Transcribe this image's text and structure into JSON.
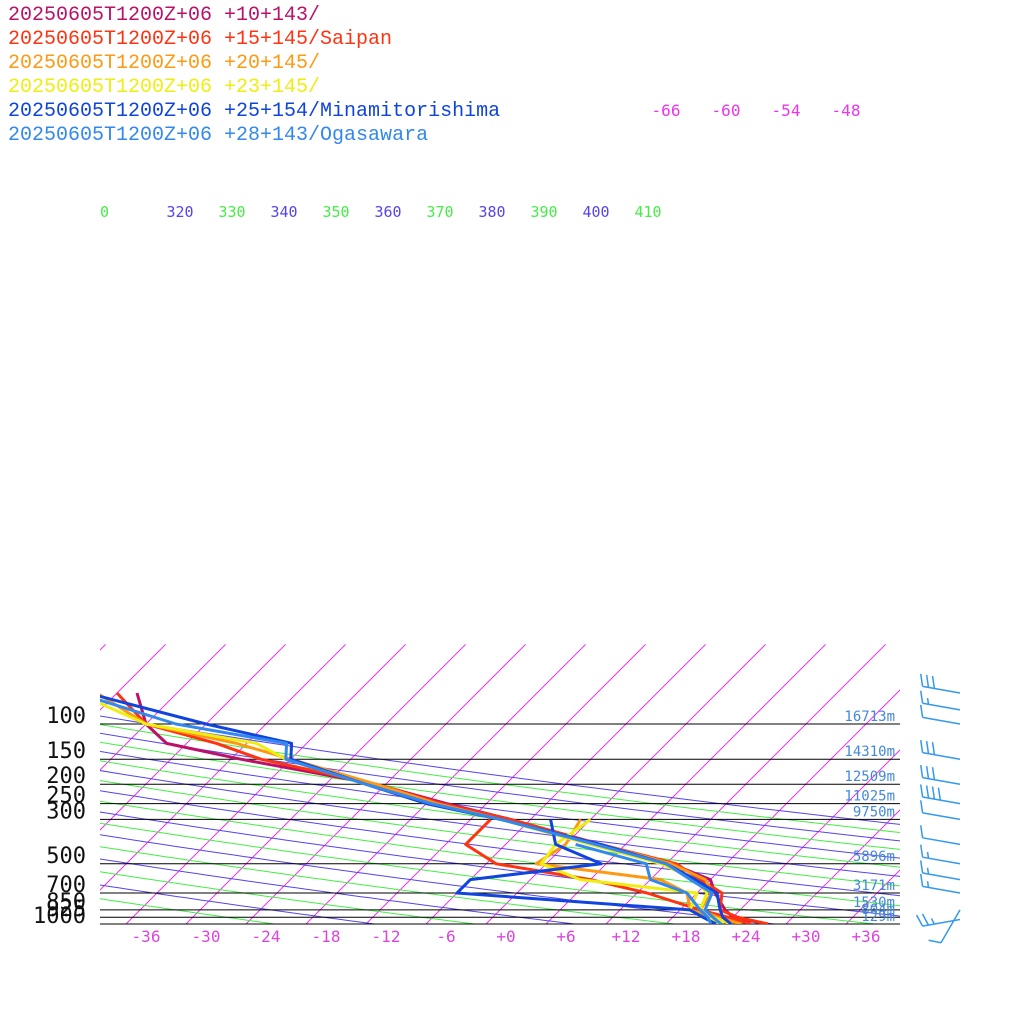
{
  "chart_data": {
    "type": "line",
    "title": "",
    "pressure_levels": [
      100,
      150,
      200,
      250,
      300,
      500,
      700,
      850,
      925,
      1000
    ],
    "pressure_labels": [
      "100",
      "150",
      "200",
      "250",
      "300",
      "500",
      "700",
      "850",
      "925",
      "1000"
    ],
    "height_labels": [
      "16713m",
      "14310m",
      "12509m",
      "11025m",
      "9750m",
      "5896m",
      "3171m",
      "1530m",
      "804m",
      "129m"
    ],
    "x_ticks": [
      -36,
      -30,
      -24,
      -18,
      -12,
      -6,
      0,
      6,
      12,
      18,
      24,
      30,
      36
    ],
    "x_tick_labels": [
      "-36",
      "-30",
      "-24",
      "-18",
      "-12",
      "-6",
      "+0",
      "+6",
      "+12",
      "+18",
      "+24",
      "+30",
      "+36"
    ],
    "isotherm_labels": [
      "-66",
      "-60",
      "-54",
      "-48"
    ],
    "theta_labels": [
      "0",
      "320",
      "330",
      "340",
      "350",
      "360",
      "370",
      "380",
      "390",
      "400",
      "410"
    ],
    "colors": {
      "isotherm": "#ee33ee",
      "theta_blue": "#5544ee",
      "theta_green": "#44ee44",
      "isobar": "#000000",
      "height_label": "#4488dd",
      "x_tick": "#dd44dd",
      "barb": "#3399ee"
    },
    "series": [
      {
        "name": "20250605T1200Z+06 +10+143/",
        "color": "#bb1166",
        "points": [
          {
            "p": 1000,
            "t": 26.1,
            "dew": null
          },
          {
            "p": 925,
            "t": 22.0,
            "dew": null
          },
          {
            "p": 850,
            "t": 20.5,
            "dew": null
          },
          {
            "p": 700,
            "t": 17.8,
            "dew": null
          },
          {
            "p": 600,
            "t": 16.0,
            "dew": null
          },
          {
            "p": 500,
            "t": 10.5,
            "dew": null
          },
          {
            "p": 400,
            "t": 1.5,
            "dew": null
          },
          {
            "p": 300,
            "t": -10.0,
            "dew": null
          },
          {
            "p": 250,
            "t": -18.0,
            "dew": null
          },
          {
            "p": 200,
            "t": -27.0,
            "dew": null
          },
          {
            "p": 150,
            "t": -43.0,
            "dew": null
          },
          {
            "p": 125,
            "t": -52.0,
            "dew": null
          },
          {
            "p": 100,
            "t": -56.0,
            "dew": null
          },
          {
            "p": 70,
            "t": -60.0,
            "dew": null
          }
        ]
      },
      {
        "name": "20250605T1200Z+06 +15+145/Saipan",
        "color": "#ff3311",
        "points": [
          {
            "p": 1000,
            "t": 26.2,
            "dew": 24.5
          },
          {
            "p": 925,
            "t": 22.5,
            "dew": 21.5
          },
          {
            "p": 850,
            "t": 20.0,
            "dew": 18.0
          },
          {
            "p": 700,
            "t": 18.5,
            "dew": 11.0
          },
          {
            "p": 600,
            "t": 15.0,
            "dew": 4.0
          },
          {
            "p": 500,
            "t": 11.0,
            "dew": -7.0
          },
          {
            "p": 400,
            "t": 1.5,
            "dew": -12.0
          },
          {
            "p": 300,
            "t": -10.0,
            "dew": -12.0
          },
          {
            "p": 250,
            "t": -18.5,
            "dew": null
          },
          {
            "p": 200,
            "t": -27.0,
            "dew": null
          },
          {
            "p": 150,
            "t": -41.0,
            "dew": null
          },
          {
            "p": 125,
            "t": -47.0,
            "dew": null
          },
          {
            "p": 100,
            "t": -56.0,
            "dew": null
          },
          {
            "p": 70,
            "t": -62.0,
            "dew": null
          }
        ]
      },
      {
        "name": "20250605T1200Z+06 +20+145/",
        "color": "#ff9911",
        "points": [
          {
            "p": 1000,
            "t": 23.5,
            "dew": 22.5
          },
          {
            "p": 925,
            "t": 20.5,
            "dew": 20.0
          },
          {
            "p": 850,
            "t": 18.0,
            "dew": 17.0
          },
          {
            "p": 700,
            "t": 17.5,
            "dew": 15.0
          },
          {
            "p": 600,
            "t": 15.5,
            "dew": 11.0
          },
          {
            "p": 500,
            "t": 10.5,
            "dew": -3.0
          },
          {
            "p": 400,
            "t": 1.5,
            "dew": -2.0
          },
          {
            "p": 300,
            "t": -11.0,
            "dew": -3.0
          },
          {
            "p": 250,
            "t": -19.0,
            "dew": null
          },
          {
            "p": 200,
            "t": -27.0,
            "dew": null
          },
          {
            "p": 150,
            "t": -38.0,
            "dew": null
          },
          {
            "p": 125,
            "t": -45.0,
            "dew": null
          },
          {
            "p": 100,
            "t": -56.0,
            "dew": null
          },
          {
            "p": 70,
            "t": -64.0,
            "dew": null
          }
        ]
      },
      {
        "name": "20250605T1200Z+06 +23+145/",
        "color": "#eeee11",
        "points": [
          {
            "p": 1000,
            "t": 22.5,
            "dew": 21.5
          },
          {
            "p": 925,
            "t": 20.0,
            "dew": 19.0
          },
          {
            "p": 850,
            "t": 18.0,
            "dew": 17.0
          },
          {
            "p": 700,
            "t": 17.0,
            "dew": 16.0
          },
          {
            "p": 600,
            "t": 14.5,
            "dew": 3.0
          },
          {
            "p": 500,
            "t": 9.5,
            "dew": -2.5
          },
          {
            "p": 400,
            "t": 0.5,
            "dew": -3.0
          },
          {
            "p": 300,
            "t": -11.0,
            "dew": -2.0
          },
          {
            "p": 250,
            "t": -20.0,
            "dew": null
          },
          {
            "p": 200,
            "t": -28.0,
            "dew": null
          },
          {
            "p": 150,
            "t": -38.5,
            "dew": null
          },
          {
            "p": 125,
            "t": -43.0,
            "dew": null
          },
          {
            "p": 100,
            "t": -56.0,
            "dew": null
          },
          {
            "p": 70,
            "t": -66.0,
            "dew": null
          }
        ]
      },
      {
        "name": "20250605T1200Z+06 +25+154/Minamitorishima",
        "color": "#1144dd",
        "points": [
          {
            "p": 1000,
            "t": 22.5,
            "dew": 21.0
          },
          {
            "p": 925,
            "t": 21.0,
            "dew": 19.0
          },
          {
            "p": 850,
            "t": 20.0,
            "dew": 17.0
          },
          {
            "p": 700,
            "t": 18.0,
            "dew": -8.0
          },
          {
            "p": 600,
            "t": 14.5,
            "dew": -8.0
          },
          {
            "p": 500,
            "t": 10.0,
            "dew": 3.5
          },
          {
            "p": 400,
            "t": 1.5,
            "dew": -3.0
          },
          {
            "p": 300,
            "t": -11.0,
            "dew": -6.0
          },
          {
            "p": 250,
            "t": -20.0,
            "dew": null
          },
          {
            "p": 200,
            "t": -28.0,
            "dew": null
          },
          {
            "p": 150,
            "t": -38.0,
            "dew": null
          },
          {
            "p": 125,
            "t": -39.5,
            "dew": null
          },
          {
            "p": 100,
            "t": -50.0,
            "dew": null
          },
          {
            "p": 70,
            "t": -65.0,
            "dew": null
          }
        ]
      },
      {
        "name": "20250605T1200Z+06 +28+143/Ogasawara",
        "color": "#3388ee",
        "points": [
          {
            "p": 1000,
            "t": 21.5,
            "dew": 20.5
          },
          {
            "p": 925,
            "t": 20.0,
            "dew": 19.5
          },
          {
            "p": 850,
            "t": 18.5,
            "dew": 18.0
          },
          {
            "p": 700,
            "t": 17.5,
            "dew": 15.0
          },
          {
            "p": 600,
            "t": 14.0,
            "dew": 10.0
          },
          {
            "p": 500,
            "t": 10.0,
            "dew": 8.0
          },
          {
            "p": 400,
            "t": 1.0,
            "dew": -1.0
          },
          {
            "p": 300,
            "t": -11.0,
            "dew": null
          },
          {
            "p": 250,
            "t": -19.5,
            "dew": null
          },
          {
            "p": 200,
            "t": -28.0,
            "dew": null
          },
          {
            "p": 150,
            "t": -38.5,
            "dew": null
          },
          {
            "p": 125,
            "t": -40.0,
            "dew": null
          },
          {
            "p": 100,
            "t": -53.0,
            "dew": null
          },
          {
            "p": 70,
            "t": -66.0,
            "dew": null
          }
        ]
      }
    ],
    "wind_barbs": [
      {
        "p": 70,
        "dir": 100,
        "kt": 30
      },
      {
        "p": 85,
        "dir": 100,
        "kt": 15
      },
      {
        "p": 100,
        "dir": 100,
        "kt": 10
      },
      {
        "p": 150,
        "dir": 100,
        "kt": 30
      },
      {
        "p": 200,
        "dir": 100,
        "kt": 30
      },
      {
        "p": 250,
        "dir": 100,
        "kt": 40
      },
      {
        "p": 300,
        "dir": 100,
        "kt": 10
      },
      {
        "p": 400,
        "dir": 100,
        "kt": 10
      },
      {
        "p": 500,
        "dir": 100,
        "kt": 15
      },
      {
        "p": 600,
        "dir": 100,
        "kt": 15
      },
      {
        "p": 700,
        "dir": 100,
        "kt": 15
      },
      {
        "p": 850,
        "dir": 30,
        "kt": 10
      },
      {
        "p": 950,
        "dir": 80,
        "kt": 25
      }
    ]
  }
}
